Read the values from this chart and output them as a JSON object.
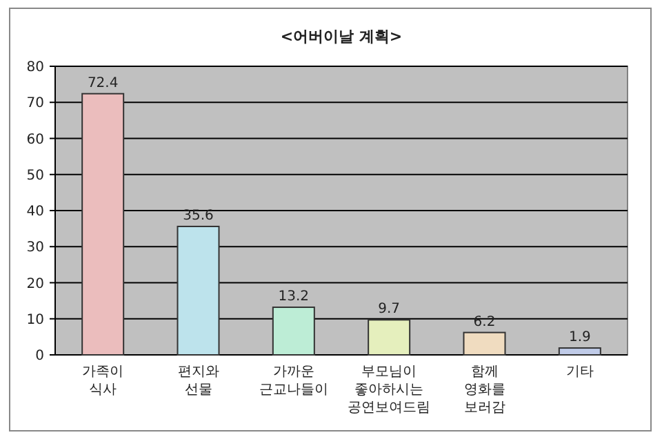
{
  "chart_data": {
    "type": "bar",
    "title": "<어버이날 계획>",
    "categories": [
      "가족이\n식사",
      "편지와\n선물",
      "가까운\n근교나들이",
      "부모님이\n좋아하시는\n공연보여드림",
      "함께\n영화를\n보러감",
      "기타"
    ],
    "values": [
      72.4,
      35.6,
      13.2,
      9.7,
      6.2,
      1.9
    ],
    "colors": [
      "#ebbdbd",
      "#bde3ec",
      "#bdedd6",
      "#e5efbd",
      "#f0dcc0",
      "#c0cbe8"
    ],
    "ylim": [
      0,
      80
    ],
    "yticks": [
      0,
      10,
      20,
      30,
      40,
      50,
      60,
      70,
      80
    ],
    "grid": "y",
    "data_labels": true
  }
}
